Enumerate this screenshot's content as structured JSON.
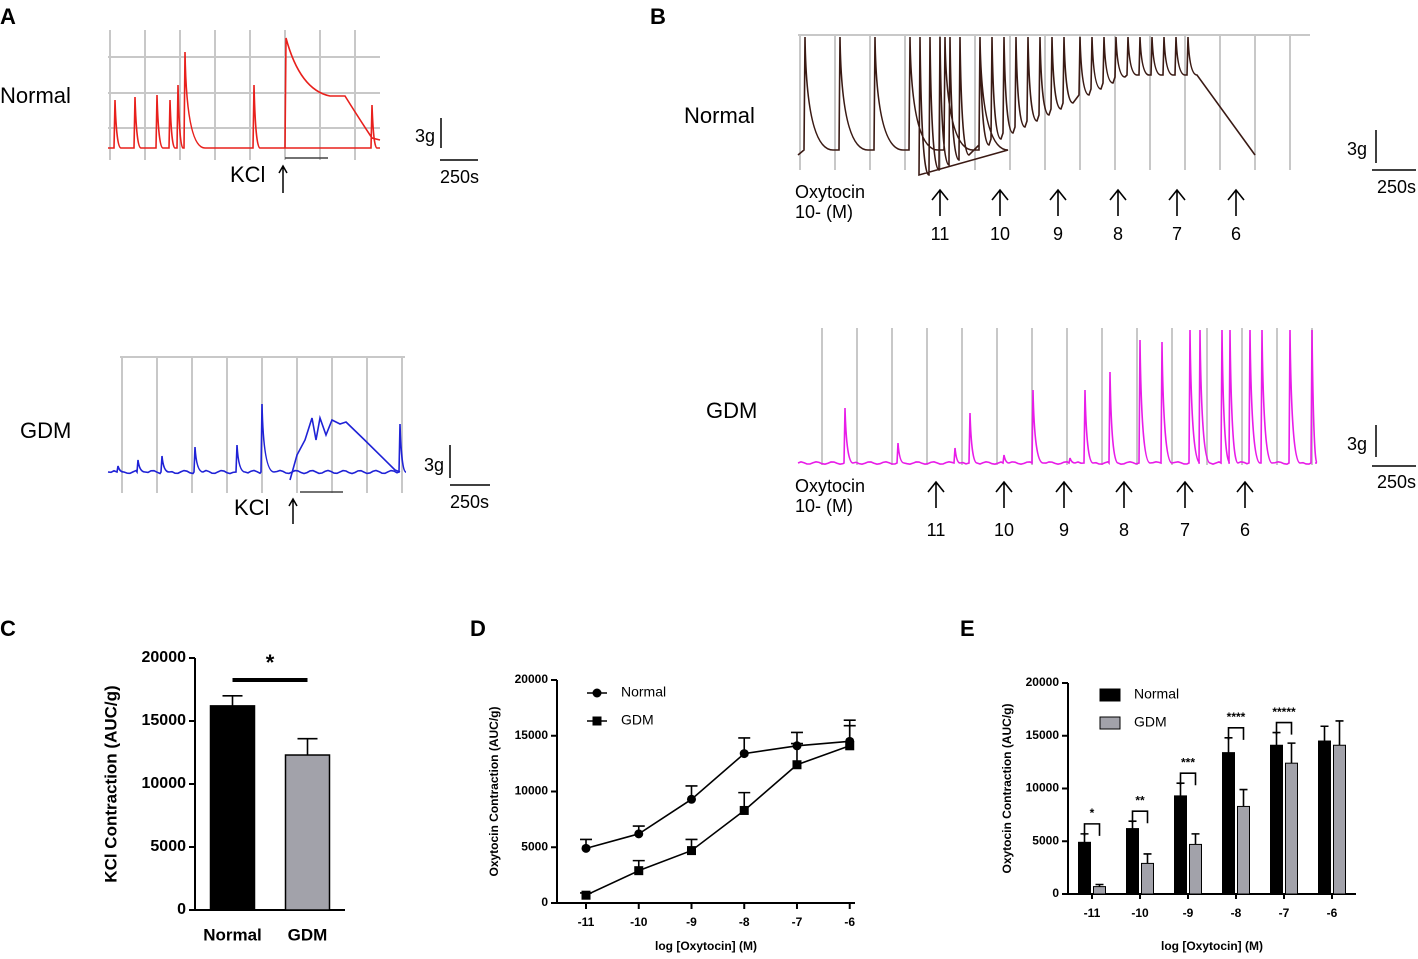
{
  "panel_labels": [
    "A",
    "B",
    "C",
    "D",
    "E"
  ],
  "trace_a": {
    "rows": [
      {
        "label": "Normal",
        "stimulus": "KCl",
        "scale_y": "3g",
        "scale_x": "250s"
      },
      {
        "label": "GDM",
        "stimulus": "KCl",
        "scale_y": "3g",
        "scale_x": "250s"
      }
    ]
  },
  "trace_b": {
    "rows": [
      {
        "label": "Normal",
        "drug": "Oxytocin",
        "unit": "10- (M)",
        "doses": [
          "11",
          "10",
          "9",
          "8",
          "7",
          "6"
        ],
        "scale_y": "3g",
        "scale_x": "250s"
      },
      {
        "label": "GDM",
        "drug": "Oxytocin",
        "unit": "10- (M)",
        "doses": [
          "11",
          "10",
          "9",
          "8",
          "7",
          "6"
        ],
        "scale_y": "3g",
        "scale_x": "250s"
      }
    ]
  },
  "chart_data": [
    {
      "type": "bar",
      "ylabel": "KCl Contraction (AUC/g)",
      "categories": [
        "Normal",
        "GDM"
      ],
      "values": [
        16200,
        12300
      ],
      "errors": [
        800,
        1300
      ],
      "colors": [
        "#000000",
        "#a2a2aa"
      ],
      "ylim": [
        0,
        20000
      ],
      "yticks": [
        0,
        5000,
        10000,
        15000,
        20000
      ],
      "annotation": "*"
    },
    {
      "type": "line",
      "xlabel": "log [Oxytocin] (M)",
      "ylabel": "Oxytocin Contraction (AUC/g)",
      "x": [
        -11,
        -10,
        -9,
        -8,
        -7,
        -6
      ],
      "series": [
        {
          "name": "Normal",
          "color": "#000000",
          "marker": "circle",
          "values": [
            4900,
            6200,
            9300,
            13400,
            14100,
            14500
          ],
          "errors": [
            800,
            700,
            1200,
            1400,
            1200,
            1400
          ]
        },
        {
          "name": "GDM",
          "color": "#000000",
          "marker": "square",
          "values": [
            700,
            2900,
            4700,
            8300,
            12400,
            14100
          ],
          "errors": [
            200,
            900,
            1000,
            1600,
            1900,
            2300
          ]
        }
      ],
      "xlim": [
        -11.55,
        -5.9
      ],
      "xticks": [
        -11,
        -10,
        -9,
        -8,
        -7,
        -6
      ],
      "ylim": [
        0,
        20000
      ],
      "yticks": [
        0,
        5000,
        10000,
        15000,
        20000
      ]
    },
    {
      "type": "bar",
      "xlabel": "log [Oxytocin] (M)",
      "ylabel": "Oxytocin Contraction (AUC/g)",
      "categories": [
        "-11",
        "-10",
        "-9",
        "-8",
        "-7",
        "-6"
      ],
      "series": [
        {
          "name": "Normal",
          "color": "#000000",
          "values": [
            4900,
            6200,
            9300,
            13400,
            14100,
            14500
          ],
          "errors": [
            800,
            700,
            1200,
            1400,
            1200,
            1400
          ]
        },
        {
          "name": "GDM",
          "color": "#a2a2aa",
          "values": [
            700,
            2900,
            4700,
            8300,
            12400,
            14100
          ],
          "errors": [
            200,
            900,
            1000,
            1600,
            1900,
            2300
          ]
        }
      ],
      "significance": [
        "*",
        "**",
        "***",
        "****",
        "*****",
        null
      ],
      "ylim": [
        0,
        20000
      ],
      "yticks": [
        0,
        5000,
        10000,
        15000,
        20000
      ]
    }
  ]
}
